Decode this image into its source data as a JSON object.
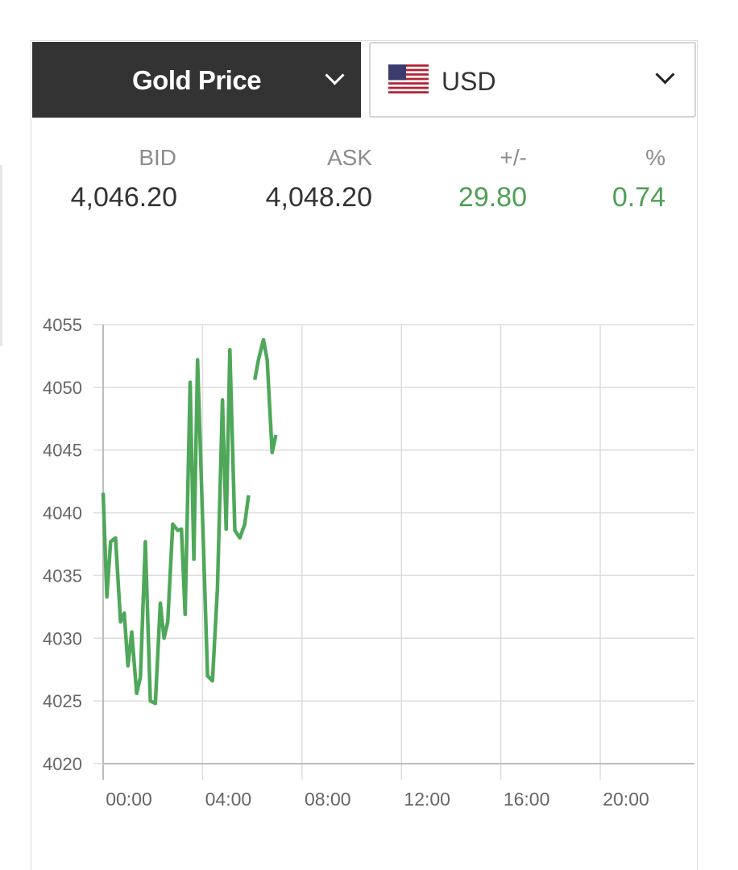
{
  "selector": {
    "metal_label": "Gold Price",
    "currency_label": "USD",
    "flag_icon": "us-flag-icon"
  },
  "quote": {
    "headers": {
      "bid": "BID",
      "ask": "ASK",
      "change": "+/-",
      "percent": "%"
    },
    "bid": "4,046.20",
    "ask": "4,048.20",
    "change": "29.80",
    "percent": "0.74"
  },
  "colors": {
    "positive": "#4e9f55",
    "line": "#4fa85a",
    "header_dark": "#333333"
  },
  "chart_data": {
    "type": "line",
    "title": "",
    "xlabel": "",
    "ylabel": "",
    "x_ticks": [
      "00:00",
      "04:00",
      "08:00",
      "12:00",
      "16:00",
      "20:00"
    ],
    "xlim": [
      0,
      24
    ],
    "y_ticks": [
      4055,
      4050,
      4045,
      4040,
      4035,
      4030,
      4025,
      4020
    ],
    "ylim": [
      4020,
      4055
    ],
    "grid": true,
    "series": [
      {
        "segments": [
          [
            [
              0.0,
              4041.6
            ],
            [
              0.15,
              4033.3
            ],
            [
              0.3,
              4037.7
            ],
            [
              0.5,
              4038.0
            ],
            [
              0.7,
              4031.3
            ],
            [
              0.85,
              4032.0
            ],
            [
              1.0,
              4027.8
            ],
            [
              1.15,
              4030.5
            ],
            [
              1.35,
              4025.6
            ],
            [
              1.5,
              4026.9
            ],
            [
              1.7,
              4037.7
            ],
            [
              1.9,
              4025.0
            ],
            [
              2.1,
              4024.8
            ],
            [
              2.3,
              4032.8
            ],
            [
              2.45,
              4030.0
            ],
            [
              2.6,
              4031.3
            ],
            [
              2.8,
              4039.1
            ],
            [
              3.0,
              4038.6
            ],
            [
              3.15,
              4038.7
            ],
            [
              3.3,
              4031.9
            ],
            [
              3.5,
              4050.4
            ],
            [
              3.65,
              4036.3
            ],
            [
              3.8,
              4052.2
            ],
            [
              4.2,
              4027.0
            ],
            [
              4.4,
              4026.6
            ],
            [
              4.6,
              4034.0
            ],
            [
              4.8,
              4049.0
            ],
            [
              4.95,
              4038.7
            ],
            [
              5.1,
              4053.0
            ],
            [
              5.3,
              4038.6
            ],
            [
              5.5,
              4038.0
            ],
            [
              5.7,
              4039.1
            ],
            [
              5.85,
              4041.4
            ]
          ],
          [
            [
              6.1,
              4050.6
            ],
            [
              6.25,
              4052.2
            ],
            [
              6.45,
              4053.8
            ],
            [
              6.6,
              4052.2
            ],
            [
              6.8,
              4044.8
            ],
            [
              6.95,
              4046.2
            ]
          ]
        ]
      }
    ]
  }
}
